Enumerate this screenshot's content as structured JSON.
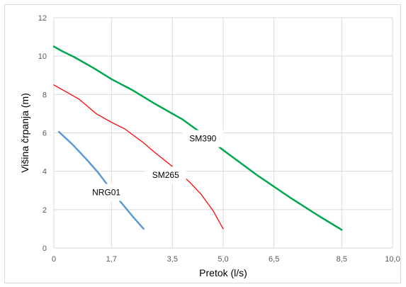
{
  "chart_data": {
    "type": "line",
    "title": "",
    "xlabel": "Pretok (l/s)",
    "ylabel": "Višina črpanja (m)",
    "x_tick_positions": [
      0,
      1.7,
      3.5,
      5.0,
      6.5,
      8.5,
      10.0
    ],
    "x_tick_labels": [
      "0",
      "1,7",
      "3,5",
      "5,0",
      "6,5",
      "8,5",
      "10,0"
    ],
    "y_ticks": [
      0,
      2,
      4,
      6,
      8,
      10,
      12
    ],
    "y_tick_labels": [
      "0",
      "2",
      "4",
      "6",
      "8",
      "10",
      "12"
    ],
    "xlim": [
      0,
      10
    ],
    "ylim": [
      0,
      12
    ],
    "grid": true,
    "legend": "none",
    "series": [
      {
        "name": "SM390",
        "color": "#00a650",
        "label_at": [
          4.4,
          5.7
        ],
        "points": [
          [
            0,
            10.5
          ],
          [
            0.25,
            10.25
          ],
          [
            0.6,
            9.95
          ],
          [
            1.2,
            9.35
          ],
          [
            1.7,
            8.8
          ],
          [
            2.3,
            8.25
          ],
          [
            3.0,
            7.5
          ],
          [
            3.8,
            6.7
          ],
          [
            4.5,
            5.8
          ],
          [
            5.0,
            5.1
          ],
          [
            6.0,
            3.8
          ],
          [
            7.0,
            2.6
          ],
          [
            7.8,
            1.7
          ],
          [
            8.5,
            0.95
          ]
        ]
      },
      {
        "name": "SM265",
        "color": "#ff0000",
        "label_at": [
          3.3,
          3.8
        ],
        "points": [
          [
            0,
            8.5
          ],
          [
            0.25,
            8.25
          ],
          [
            0.75,
            7.75
          ],
          [
            1.25,
            7.0
          ],
          [
            1.7,
            6.55
          ],
          [
            2.1,
            6.2
          ],
          [
            2.6,
            5.55
          ],
          [
            3.0,
            4.95
          ],
          [
            3.5,
            4.25
          ],
          [
            4.0,
            3.45
          ],
          [
            4.35,
            2.8
          ],
          [
            4.7,
            1.95
          ],
          [
            5.0,
            1.0
          ]
        ]
      },
      {
        "name": "NRG01",
        "color": "#5b9bd5",
        "label_at": [
          1.55,
          2.9
        ],
        "points": [
          [
            0.15,
            6.05
          ],
          [
            0.55,
            5.4
          ],
          [
            0.95,
            4.65
          ],
          [
            1.3,
            3.95
          ],
          [
            1.6,
            3.25
          ],
          [
            1.95,
            2.45
          ],
          [
            2.35,
            1.6
          ],
          [
            2.65,
            1.0
          ]
        ]
      }
    ]
  }
}
